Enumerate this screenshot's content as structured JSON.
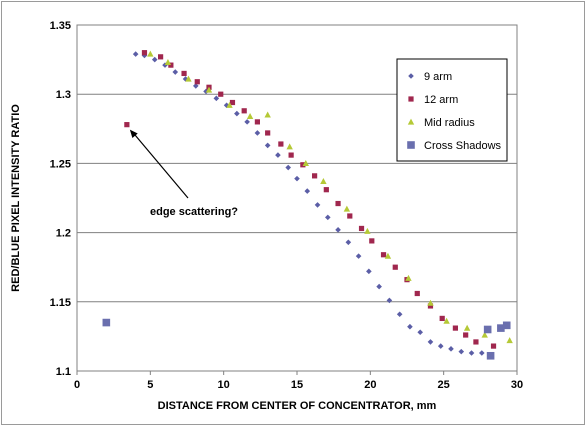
{
  "chart_data": {
    "type": "scatter",
    "title": "",
    "xlabel": "DISTANCE FROM CENTER OF CONCENTRATOR, mm",
    "ylabel": "RED/BLUE PIXEL INTENSITY RATIO",
    "xlim": [
      0,
      30
    ],
    "ylim": [
      1.1,
      1.35
    ],
    "xticks": [
      "0",
      "5",
      "10",
      "15",
      "20",
      "25",
      "30"
    ],
    "yticks": [
      "1.1",
      "1.15",
      "1.2",
      "1.25",
      "1.3",
      "1.35"
    ],
    "grid": "horizontal",
    "legend": "right",
    "annotation": {
      "text": "edge scattering?",
      "target": [
        3.4,
        1.278
      ]
    },
    "series": [
      {
        "name": "9 arm",
        "marker": "diamond",
        "color": "#5b5ea6",
        "points": [
          [
            4.0,
            1.329
          ],
          [
            4.6,
            1.328
          ],
          [
            5.3,
            1.325
          ],
          [
            6.0,
            1.321
          ],
          [
            6.7,
            1.316
          ],
          [
            7.4,
            1.311
          ],
          [
            8.1,
            1.306
          ],
          [
            8.8,
            1.302
          ],
          [
            9.5,
            1.297
          ],
          [
            10.2,
            1.292
          ],
          [
            10.9,
            1.286
          ],
          [
            11.6,
            1.28
          ],
          [
            12.3,
            1.272
          ],
          [
            13.0,
            1.263
          ],
          [
            13.7,
            1.256
          ],
          [
            14.4,
            1.247
          ],
          [
            15.0,
            1.239
          ],
          [
            15.7,
            1.23
          ],
          [
            16.4,
            1.22
          ],
          [
            17.1,
            1.211
          ],
          [
            17.8,
            1.202
          ],
          [
            18.5,
            1.193
          ],
          [
            19.2,
            1.183
          ],
          [
            19.9,
            1.172
          ],
          [
            20.6,
            1.161
          ],
          [
            21.3,
            1.151
          ],
          [
            22.0,
            1.141
          ],
          [
            22.7,
            1.132
          ],
          [
            23.4,
            1.128
          ],
          [
            24.1,
            1.121
          ],
          [
            24.8,
            1.118
          ],
          [
            25.5,
            1.116
          ],
          [
            26.2,
            1.114
          ],
          [
            26.9,
            1.113
          ],
          [
            27.6,
            1.113
          ]
        ]
      },
      {
        "name": "12 arm",
        "marker": "square",
        "color": "#a0274e",
        "points": [
          [
            3.4,
            1.278
          ],
          [
            4.6,
            1.33
          ],
          [
            5.7,
            1.327
          ],
          [
            6.4,
            1.321
          ],
          [
            7.3,
            1.315
          ],
          [
            8.2,
            1.309
          ],
          [
            9.0,
            1.305
          ],
          [
            9.8,
            1.3
          ],
          [
            10.6,
            1.294
          ],
          [
            11.4,
            1.288
          ],
          [
            12.3,
            1.28
          ],
          [
            13.0,
            1.272
          ],
          [
            13.9,
            1.264
          ],
          [
            14.6,
            1.256
          ],
          [
            15.4,
            1.249
          ],
          [
            16.2,
            1.241
          ],
          [
            17.0,
            1.231
          ],
          [
            17.8,
            1.221
          ],
          [
            18.6,
            1.212
          ],
          [
            19.4,
            1.203
          ],
          [
            20.1,
            1.194
          ],
          [
            20.9,
            1.184
          ],
          [
            21.7,
            1.175
          ],
          [
            22.5,
            1.166
          ],
          [
            23.2,
            1.156
          ],
          [
            24.1,
            1.147
          ],
          [
            24.9,
            1.138
          ],
          [
            25.8,
            1.131
          ],
          [
            26.5,
            1.126
          ],
          [
            27.2,
            1.121
          ],
          [
            28.4,
            1.118
          ]
        ]
      },
      {
        "name": "Mid radius",
        "marker": "triangle",
        "color": "#b5c936",
        "points": [
          [
            5.0,
            1.329
          ],
          [
            6.2,
            1.323
          ],
          [
            7.6,
            1.311
          ],
          [
            9.0,
            1.303
          ],
          [
            10.4,
            1.292
          ],
          [
            11.8,
            1.284
          ],
          [
            13.0,
            1.285
          ],
          [
            14.5,
            1.262
          ],
          [
            15.6,
            1.25
          ],
          [
            16.8,
            1.237
          ],
          [
            18.4,
            1.217
          ],
          [
            19.8,
            1.201
          ],
          [
            21.2,
            1.183
          ],
          [
            22.6,
            1.167
          ],
          [
            24.1,
            1.149
          ],
          [
            25.2,
            1.136
          ],
          [
            26.6,
            1.131
          ],
          [
            27.8,
            1.126
          ],
          [
            29.5,
            1.122
          ]
        ]
      },
      {
        "name": "Cross Shadows",
        "marker": "bigsquare",
        "color": "#6a6fae",
        "points": [
          [
            2.0,
            1.135
          ],
          [
            28.0,
            1.13
          ],
          [
            28.2,
            1.111
          ],
          [
            28.9,
            1.131
          ],
          [
            29.3,
            1.133
          ]
        ]
      }
    ]
  }
}
